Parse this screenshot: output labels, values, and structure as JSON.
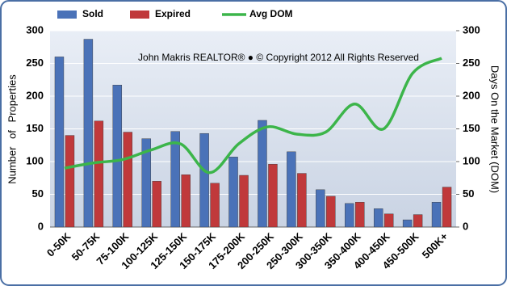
{
  "chart_data": {
    "type": "bar",
    "annotation": "John Makris REALTOR®  ●  © Copyright 2012 All Rights Reserved",
    "ylabel": "Number of Properties",
    "y2label": "Days On the Market (DOM)",
    "categories": [
      "0-50K",
      "50-75K",
      "75-100K",
      "100-125K",
      "125-150K",
      "150-175K",
      "175-200K",
      "200-250K",
      "250-300K",
      "300-350K",
      "350-400K",
      "400-450K",
      "450-500K",
      "500K+"
    ],
    "series": [
      {
        "name": "Sold",
        "type": "bar",
        "color": "#4a72b8",
        "values": [
          260,
          287,
          217,
          135,
          146,
          143,
          107,
          163,
          115,
          57,
          36,
          28,
          11,
          38
        ]
      },
      {
        "name": "Expired",
        "type": "bar",
        "color": "#c0393b",
        "values": [
          140,
          162,
          145,
          70,
          80,
          67,
          79,
          96,
          82,
          47,
          38,
          20,
          19,
          61
        ]
      },
      {
        "name": "Avg DOM",
        "type": "line",
        "axis": "y2",
        "color": "#3cb54a",
        "values": [
          90,
          98,
          103,
          118,
          127,
          83,
          127,
          153,
          142,
          145,
          188,
          150,
          235,
          258
        ]
      }
    ],
    "ylim": [
      0,
      300
    ],
    "yticks": [
      0,
      50,
      100,
      150,
      200,
      250,
      300
    ],
    "y2lim": [
      0,
      300
    ],
    "y2ticks": [
      0,
      50,
      100,
      150,
      200,
      250,
      300
    ],
    "grid": true
  }
}
